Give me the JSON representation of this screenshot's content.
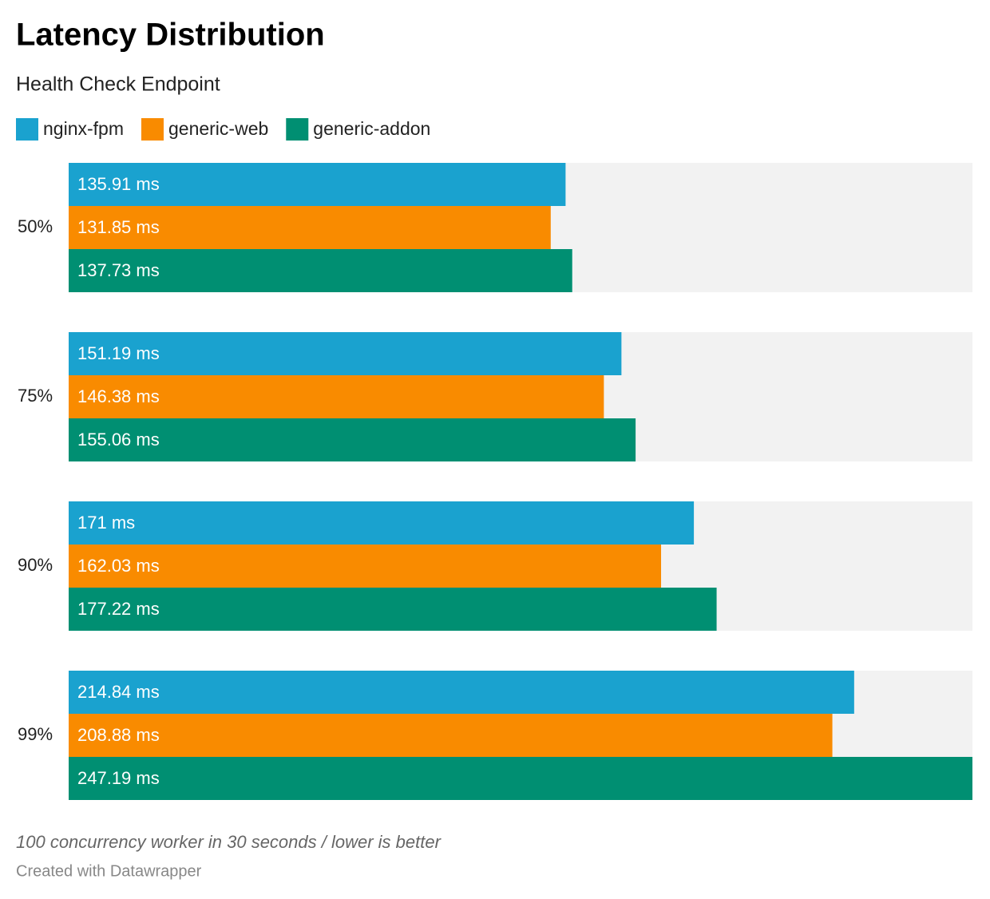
{
  "chart_data": {
    "type": "grouped-bar-horizontal",
    "title": "Latency Distribution",
    "subtitle": "Health Check Endpoint",
    "categories": [
      "50%",
      "75%",
      "90%",
      "99%"
    ],
    "series": [
      {
        "name": "nginx-fpm",
        "color": "#1aa2cf",
        "values": [
          135.91,
          151.19,
          171,
          214.84
        ],
        "value_labels": [
          "135.91 ms",
          "151.19 ms",
          "171 ms",
          "214.84 ms"
        ]
      },
      {
        "name": "generic-web",
        "color": "#f98b00",
        "values": [
          131.85,
          146.38,
          162.03,
          208.88
        ],
        "value_labels": [
          "131.85 ms",
          "146.38 ms",
          "162.03 ms",
          "208.88 ms"
        ]
      },
      {
        "name": "generic-addon",
        "color": "#008f72",
        "values": [
          137.73,
          155.06,
          177.22,
          247.19
        ],
        "value_labels": [
          "137.73 ms",
          "155.06 ms",
          "177.22 ms",
          "247.19 ms"
        ]
      }
    ],
    "note": "100 concurrency worker in 30 seconds / lower is better",
    "credit": "Created with Datawrapper"
  }
}
